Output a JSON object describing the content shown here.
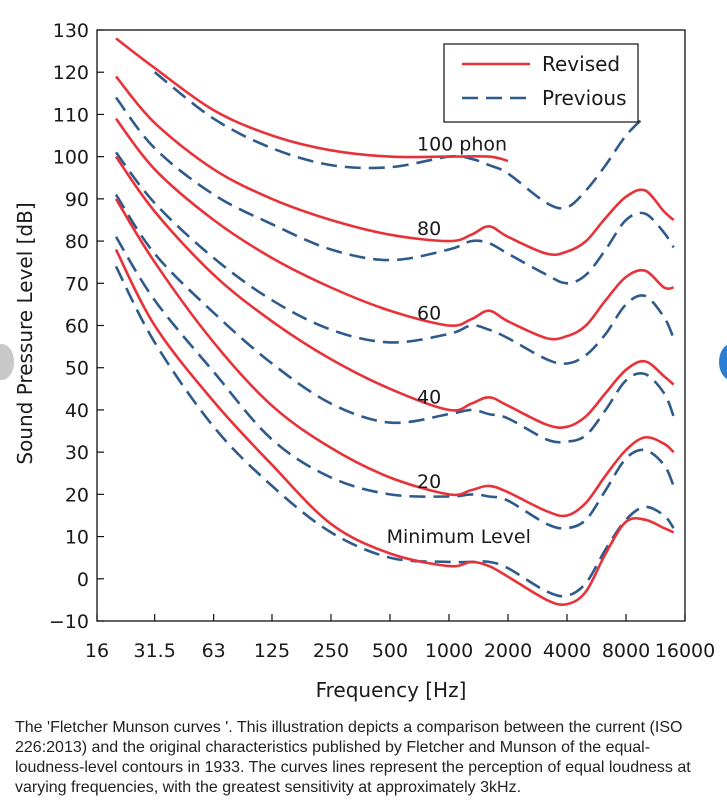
{
  "chart_data": {
    "type": "line",
    "xlabel": "Frequency [Hz]",
    "ylabel": "Sound Pressure Level [dB]",
    "x_scale": "log",
    "x_ticks": [
      "16",
      "31.5",
      "63",
      "125",
      "250",
      "500",
      "1000",
      "2000",
      "4000",
      "8000",
      "16000"
    ],
    "x_tick_values": [
      16,
      31.5,
      63,
      125,
      250,
      500,
      1000,
      2000,
      4000,
      8000,
      16000
    ],
    "y_ticks": [
      130,
      120,
      110,
      100,
      90,
      80,
      70,
      60,
      50,
      40,
      30,
      20,
      10,
      0,
      -10
    ],
    "ylim": [
      -10,
      130
    ],
    "xlim": [
      16,
      16000
    ],
    "grid": false,
    "legend": {
      "placement": "top-right",
      "entries": [
        {
          "label": "Revised",
          "style": "solid",
          "color": "#e8323a"
        },
        {
          "label": "Previous",
          "style": "dashed",
          "color": "#2f5a8c"
        }
      ]
    },
    "annotations": [
      {
        "text": "100 phon",
        "x": 1000,
        "y": 101
      },
      {
        "text": "80",
        "x": 1000,
        "y": 81
      },
      {
        "text": "60",
        "x": 1000,
        "y": 61
      },
      {
        "text": "40",
        "x": 1000,
        "y": 41
      },
      {
        "text": "20",
        "x": 1000,
        "y": 21
      },
      {
        "text": "Minimum Level",
        "x": 700,
        "y": 8
      }
    ],
    "series": [
      {
        "style": "solid",
        "level": "100",
        "points": [
          [
            20,
            128
          ],
          [
            31.5,
            121
          ],
          [
            63,
            111
          ],
          [
            125,
            105
          ],
          [
            250,
            101.5
          ],
          [
            500,
            100
          ],
          [
            1000,
            100
          ],
          [
            1600,
            100
          ],
          [
            2000,
            99
          ]
        ]
      },
      {
        "style": "solid",
        "level": "80",
        "points": [
          [
            20,
            119
          ],
          [
            31.5,
            108
          ],
          [
            63,
            97
          ],
          [
            125,
            90
          ],
          [
            250,
            85
          ],
          [
            500,
            81.5
          ],
          [
            1000,
            80
          ],
          [
            1300,
            81.5
          ],
          [
            1600,
            83.5
          ],
          [
            2000,
            81
          ],
          [
            3150,
            77
          ],
          [
            4000,
            77.5
          ],
          [
            5000,
            80
          ],
          [
            6300,
            85.5
          ],
          [
            8000,
            90.5
          ],
          [
            10000,
            92
          ],
          [
            12500,
            87
          ],
          [
            14000,
            85
          ]
        ]
      },
      {
        "style": "solid",
        "level": "60",
        "points": [
          [
            20,
            109
          ],
          [
            31.5,
            97
          ],
          [
            63,
            85
          ],
          [
            125,
            76
          ],
          [
            250,
            69
          ],
          [
            500,
            63.5
          ],
          [
            1000,
            60
          ],
          [
            1300,
            61.5
          ],
          [
            1600,
            63.5
          ],
          [
            2000,
            61
          ],
          [
            3150,
            57
          ],
          [
            4000,
            57.5
          ],
          [
            5000,
            60
          ],
          [
            6300,
            66
          ],
          [
            8000,
            71.5
          ],
          [
            10000,
            73
          ],
          [
            12500,
            69
          ],
          [
            14000,
            69
          ]
        ]
      },
      {
        "style": "solid",
        "level": "40",
        "points": [
          [
            20,
            100
          ],
          [
            31.5,
            87
          ],
          [
            63,
            72
          ],
          [
            125,
            61
          ],
          [
            250,
            52
          ],
          [
            500,
            45
          ],
          [
            1000,
            40
          ],
          [
            1300,
            41.5
          ],
          [
            1600,
            43
          ],
          [
            2000,
            41
          ],
          [
            3150,
            36.5
          ],
          [
            4000,
            36
          ],
          [
            5000,
            38.5
          ],
          [
            6300,
            44
          ],
          [
            8000,
            49.5
          ],
          [
            10000,
            51.5
          ],
          [
            12500,
            48
          ],
          [
            14000,
            46
          ]
        ]
      },
      {
        "style": "solid",
        "level": "20",
        "points": [
          [
            20,
            90
          ],
          [
            31.5,
            75
          ],
          [
            63,
            56
          ],
          [
            125,
            41
          ],
          [
            250,
            31
          ],
          [
            500,
            24
          ],
          [
            1000,
            20
          ],
          [
            1300,
            21
          ],
          [
            1600,
            22
          ],
          [
            2000,
            20.5
          ],
          [
            3150,
            16
          ],
          [
            4000,
            15
          ],
          [
            5000,
            18
          ],
          [
            6300,
            24.5
          ],
          [
            8000,
            30.5
          ],
          [
            10000,
            33.5
          ],
          [
            12500,
            32
          ],
          [
            14000,
            30
          ]
        ]
      },
      {
        "style": "solid",
        "level": "Minimum Level",
        "points": [
          [
            20,
            78
          ],
          [
            31.5,
            60
          ],
          [
            63,
            42
          ],
          [
            125,
            27
          ],
          [
            250,
            13
          ],
          [
            500,
            6
          ],
          [
            1000,
            3
          ],
          [
            1300,
            4
          ],
          [
            1600,
            3
          ],
          [
            2000,
            0.5
          ],
          [
            3150,
            -5
          ],
          [
            4000,
            -6
          ],
          [
            5000,
            -3
          ],
          [
            6300,
            6
          ],
          [
            8000,
            13.5
          ],
          [
            10000,
            14
          ],
          [
            12500,
            12
          ],
          [
            14000,
            11
          ]
        ]
      },
      {
        "style": "dashed",
        "level": "100",
        "points": [
          [
            31.5,
            120
          ],
          [
            63,
            109
          ],
          [
            125,
            102
          ],
          [
            250,
            98
          ],
          [
            500,
            97.5
          ],
          [
            1000,
            100
          ],
          [
            1300,
            99.5
          ],
          [
            1600,
            98
          ],
          [
            2000,
            96
          ],
          [
            3150,
            89
          ],
          [
            4000,
            88
          ],
          [
            5000,
            92
          ],
          [
            6300,
            98
          ],
          [
            8000,
            105
          ],
          [
            10000,
            109.5
          ]
        ]
      },
      {
        "style": "dashed",
        "level": "80",
        "points": [
          [
            20,
            114
          ],
          [
            31.5,
            102
          ],
          [
            63,
            91
          ],
          [
            125,
            84
          ],
          [
            250,
            78
          ],
          [
            500,
            75.5
          ],
          [
            1000,
            78
          ],
          [
            1300,
            80
          ],
          [
            1600,
            79.5
          ],
          [
            2000,
            77
          ],
          [
            3150,
            72
          ],
          [
            4000,
            70
          ],
          [
            5000,
            72
          ],
          [
            6300,
            78
          ],
          [
            8000,
            85
          ],
          [
            10000,
            86.5
          ],
          [
            12500,
            82
          ],
          [
            14000,
            78.5
          ]
        ]
      },
      {
        "style": "dashed",
        "level": "60",
        "points": [
          [
            20,
            101
          ],
          [
            31.5,
            89
          ],
          [
            63,
            76
          ],
          [
            125,
            66
          ],
          [
            250,
            59
          ],
          [
            500,
            56
          ],
          [
            1000,
            58
          ],
          [
            1300,
            60
          ],
          [
            1600,
            59
          ],
          [
            2000,
            57
          ],
          [
            3150,
            52
          ],
          [
            4000,
            51
          ],
          [
            5000,
            53
          ],
          [
            6300,
            58
          ],
          [
            8000,
            65
          ],
          [
            10000,
            67
          ],
          [
            12500,
            62
          ],
          [
            14000,
            57
          ]
        ]
      },
      {
        "style": "dashed",
        "level": "40",
        "points": [
          [
            20,
            91
          ],
          [
            31.5,
            77
          ],
          [
            63,
            63
          ],
          [
            125,
            51
          ],
          [
            250,
            41.5
          ],
          [
            500,
            37
          ],
          [
            1000,
            39
          ],
          [
            1300,
            40
          ],
          [
            1600,
            39
          ],
          [
            2000,
            38
          ],
          [
            3150,
            33
          ],
          [
            4000,
            32.5
          ],
          [
            5000,
            34
          ],
          [
            6300,
            40
          ],
          [
            8000,
            47
          ],
          [
            10000,
            48.5
          ],
          [
            12500,
            44
          ],
          [
            14000,
            38.5
          ]
        ]
      },
      {
        "style": "dashed",
        "level": "20",
        "points": [
          [
            20,
            81
          ],
          [
            31.5,
            66
          ],
          [
            63,
            49
          ],
          [
            125,
            33
          ],
          [
            250,
            24
          ],
          [
            500,
            20
          ],
          [
            1000,
            19.5
          ],
          [
            1300,
            20
          ],
          [
            1600,
            19.5
          ],
          [
            2000,
            18.5
          ],
          [
            3150,
            13
          ],
          [
            4000,
            12
          ],
          [
            5000,
            14
          ],
          [
            6300,
            21
          ],
          [
            8000,
            28.5
          ],
          [
            10000,
            30.5
          ],
          [
            12500,
            27
          ],
          [
            14000,
            22
          ]
        ]
      },
      {
        "style": "dashed",
        "level": "Minimum Level",
        "points": [
          [
            20,
            74
          ],
          [
            31.5,
            56
          ],
          [
            63,
            36
          ],
          [
            125,
            22
          ],
          [
            250,
            11
          ],
          [
            500,
            5
          ],
          [
            1000,
            4
          ],
          [
            1300,
            4
          ],
          [
            1600,
            4
          ],
          [
            2000,
            2.5
          ],
          [
            3150,
            -3
          ],
          [
            4000,
            -4
          ],
          [
            5000,
            -1
          ],
          [
            6300,
            7
          ],
          [
            8000,
            14
          ],
          [
            10000,
            17
          ],
          [
            12500,
            15
          ],
          [
            14000,
            12
          ]
        ]
      }
    ]
  },
  "caption": "The 'Fletcher Munson curves '. This illustration depicts a comparison between the current (ISO 226:2013) and the original characteristics published by Fletcher and Munson of the equal-loudness-level contours in 1933. The curves lines represent the perception of equal loudness at varying frequencies, with the greatest sensitivity at approximately 3kHz.",
  "colors": {
    "revised": "#e8323a",
    "previous": "#2f5a8c",
    "axis": "#111111"
  }
}
